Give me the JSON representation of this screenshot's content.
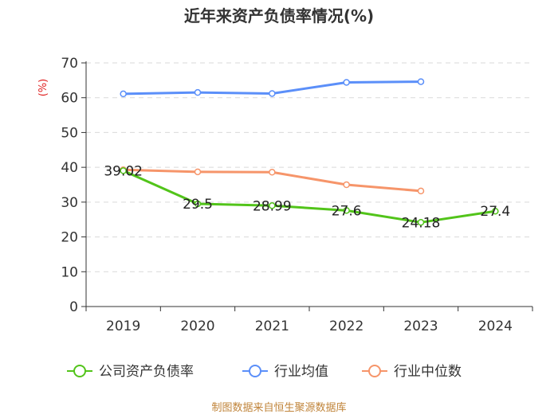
{
  "chart_data": {
    "type": "line",
    "title": "近年来资产负债率情况(%)",
    "ylabel": "(%)",
    "categories": [
      "2019",
      "2020",
      "2021",
      "2022",
      "2023",
      "2024"
    ],
    "ylim": [
      0,
      70
    ],
    "yticks": [
      0,
      10,
      20,
      30,
      40,
      50,
      60,
      70
    ],
    "grid": true,
    "legend_position": "bottom",
    "series": [
      {
        "name": "公司资产负债率",
        "color": "#52c41a",
        "values": [
          39.02,
          29.5,
          28.99,
          27.6,
          24.18,
          27.4
        ],
        "labels": [
          "39.02",
          "29.5",
          "28.99",
          "27.6",
          "24.18",
          "27.4"
        ]
      },
      {
        "name": "行业均值",
        "color": "#5b8ff9",
        "values": [
          61.1,
          61.5,
          61.2,
          64.4,
          64.6,
          null
        ]
      },
      {
        "name": "行业中位数",
        "color": "#f6956a",
        "values": [
          39.3,
          38.7,
          38.6,
          35.0,
          33.2,
          null
        ]
      }
    ]
  },
  "source": "制图数据来自恒生聚源数据库"
}
